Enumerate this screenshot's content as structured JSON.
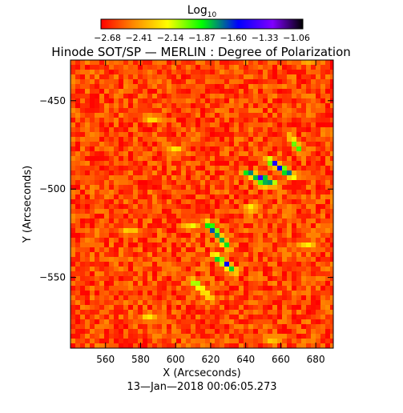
{
  "chart_data": {
    "type": "heatmap",
    "title": "Hinode SOT/SP — MERLIN : Degree of Polarization",
    "xlabel": "X (Arcseconds)",
    "ylabel": "Y (Arcseconds)",
    "date": "13—Jan—2018 00:06:05.273",
    "xlim": [
      540,
      690
    ],
    "ylim": [
      -590,
      -427
    ],
    "xticks": [
      560,
      580,
      600,
      620,
      640,
      660,
      680
    ],
    "yticks": [
      -450,
      -500,
      -550
    ],
    "colorbar": {
      "label_base": "Log",
      "label_sub": "10",
      "range": [
        -2.68,
        -1.06
      ],
      "ticks": [
        "−2.68",
        "−2.41",
        "−2.14",
        "−1.87",
        "−1.60",
        "−1.33",
        "−1.06"
      ],
      "colormap": [
        "#ff0000",
        "#ff8800",
        "#ffff00",
        "#00ff00",
        "#0000ff",
        "#8000ff",
        "#000000"
      ]
    },
    "background_level": -2.55,
    "features": [
      {
        "x": 624,
        "y": -526,
        "level": -1.6,
        "len": 14,
        "angle": -50
      },
      {
        "x": 628,
        "y": -542,
        "level": -1.7,
        "len": 10,
        "angle": -40
      },
      {
        "x": 615,
        "y": -557,
        "level": -2.0,
        "len": 12,
        "angle": -45
      },
      {
        "x": 646,
        "y": -493,
        "level": -1.55,
        "len": 10,
        "angle": -20
      },
      {
        "x": 660,
        "y": -488,
        "level": -1.65,
        "len": 12,
        "angle": -35
      },
      {
        "x": 668,
        "y": -474,
        "level": -2.0,
        "len": 6,
        "angle": -60
      },
      {
        "x": 652,
        "y": -497,
        "level": -1.5,
        "len": 4,
        "angle": 0
      },
      {
        "x": 574,
        "y": -524,
        "level": -2.2,
        "len": 4,
        "angle": 0
      },
      {
        "x": 608,
        "y": -521,
        "level": -2.2,
        "len": 4,
        "angle": 0
      },
      {
        "x": 587,
        "y": -460,
        "level": -2.2,
        "len": 3,
        "angle": 0
      },
      {
        "x": 599,
        "y": -478,
        "level": -2.2,
        "len": 3,
        "angle": 0
      },
      {
        "x": 675,
        "y": -532,
        "level": -2.2,
        "len": 3,
        "angle": 0
      },
      {
        "x": 643,
        "y": -511,
        "level": -2.1,
        "len": 3,
        "angle": 0
      },
      {
        "x": 676,
        "y": -427,
        "level": -2.2,
        "len": 3,
        "angle": 0
      },
      {
        "x": 585,
        "y": -573,
        "level": -2.2,
        "len": 3,
        "angle": 0
      },
      {
        "x": 655,
        "y": -585,
        "level": -2.2,
        "len": 3,
        "angle": 0
      }
    ]
  }
}
